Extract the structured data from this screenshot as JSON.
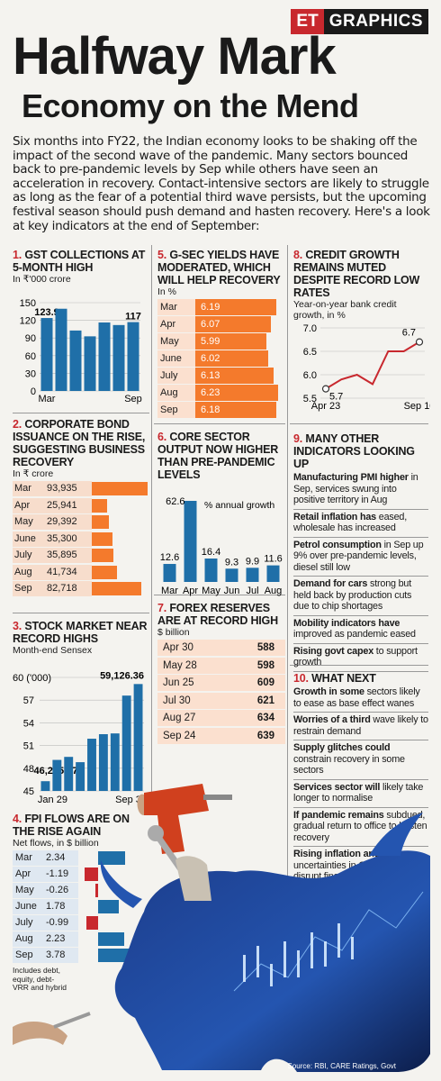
{
  "badge": {
    "et": "ET",
    "graphics": "GRAPHICS"
  },
  "title": "Halfway Mark",
  "subtitle": "Economy on the Mend",
  "intro": "Six months into FY22, the Indian economy looks to be shaking off the impact of the second wave of the pandemic. Many sectors bounced back to pre-pandemic levels by Sep while others have seen an acceleration in recovery. Contact-intensive sectors are likely to struggle as long as the fear of a potential third wave persists, but the upcoming festival season should push demand and hasten recovery. Here's a look at key indicators at the end of September:",
  "sections": {
    "gst": {
      "num": "1.",
      "title": "GST COLLECTIONS AT 5-MONTH HIGH",
      "unit": "In ₹'000 crore"
    },
    "bond": {
      "num": "2.",
      "title": "CORPORATE BOND ISSUANCE ON THE RISE, SUGGESTING BUSINESS RECOVERY",
      "unit": "In ₹ crore"
    },
    "stock": {
      "num": "3.",
      "title": "STOCK MARKET NEAR RECORD HIGHS",
      "unit": "Month-end Sensex"
    },
    "fpi": {
      "num": "4.",
      "title": "FPI FLOWS ARE ON THE RISE AGAIN",
      "unit": "Net flows, in $ billion",
      "note": "Includes debt, equity, debt-VRR and hybrid"
    },
    "gsec": {
      "num": "5.",
      "title": "G-SEC YIELDS HAVE MODERATED, WHICH WILL HELP RECOVERY",
      "unit": "In %"
    },
    "core": {
      "num": "6.",
      "title": "CORE SECTOR OUTPUT NOW HIGHER THAN PRE-PANDEMIC LEVELS",
      "unit": "% annual growth"
    },
    "forex": {
      "num": "7.",
      "title": "FOREX RESERVES ARE AT RECORD HIGH",
      "unit": "$ billion"
    },
    "credit": {
      "num": "8.",
      "title": "CREDIT GROWTH REMAINS MUTED DESPITE RECORD LOW RATES",
      "unit": "Year-on-year bank credit growth, in %"
    },
    "indicators": {
      "num": "9.",
      "title": "MANY OTHER INDICATORS LOOKING UP",
      "items": [
        {
          "bold": "Manufacturing PMI higher",
          "rest": " in Sep, services swung into positive territory in Aug"
        },
        {
          "bold": "Retail inflation has",
          "rest": " eased, wholesale has increased"
        },
        {
          "bold": "Petrol consumption",
          "rest": " in Sep up 9% over pre-pandemic levels, diesel still low"
        },
        {
          "bold": "Demand for cars",
          "rest": " strong but held back by production cuts due to chip shortages"
        },
        {
          "bold": "Mobility indicators have",
          "rest": " improved as pandemic eased"
        },
        {
          "bold": "Rising govt capex",
          "rest": " to support growth"
        }
      ]
    },
    "next": {
      "num": "10.",
      "title": "WHAT NEXT",
      "items": [
        {
          "bold": "Growth in some",
          "rest": " sectors likely to ease as base effect wanes"
        },
        {
          "bold": "Worries of a third",
          "rest": " wave likely to restrain demand"
        },
        {
          "bold": "Supply glitches could",
          "rest": " constrain recovery in some sectors"
        },
        {
          "bold": "Services sector will",
          "rest": " likely take longer to normalise"
        },
        {
          "bold": "If pandemic remains",
          "rest": " subdued, gradual return to office to hasten recovery"
        },
        {
          "bold": "Rising inflation and",
          "rest": " uncertainties in China can disrupt financial markets"
        }
      ]
    }
  },
  "source": "Source: RBI, CARE Ratings, Govt",
  "colors": {
    "blue": "#1f6fa8",
    "orange": "#f47a2c",
    "red": "#c8282e",
    "light_orange": "#fbe0cf"
  },
  "chart_data": [
    {
      "id": "gst",
      "type": "bar",
      "categories": [
        "Mar",
        "Apr",
        "May",
        "Jun",
        "Jul",
        "Aug",
        "Sep"
      ],
      "values": [
        123.9,
        139.7,
        102.7,
        92.8,
        116.4,
        112.0,
        117
      ],
      "data_labels": {
        "0": "123.9",
        "6": "117"
      },
      "x_tick_labels": [
        "Mar",
        "",
        "",
        "",
        "",
        "",
        "Sep"
      ],
      "yticks": [
        "0",
        "30",
        "60",
        "90",
        "120",
        "150"
      ],
      "ylim": [
        0,
        150
      ]
    },
    {
      "id": "gsec",
      "type": "bar",
      "categories": [
        "Mar",
        "Apr",
        "May",
        "June",
        "July",
        "Aug",
        "Sep"
      ],
      "values": [
        6.19,
        6.07,
        5.99,
        6.02,
        6.13,
        6.23,
        6.18
      ],
      "labels": [
        "6.19",
        "6.07",
        "5.99",
        "6.02",
        "6.13",
        "6.23",
        "6.18"
      ]
    },
    {
      "id": "credit",
      "type": "line",
      "x": [
        "Apr 23",
        "",
        "",
        "",
        "",
        "",
        "Sep 10"
      ],
      "values": [
        5.7,
        5.9,
        6.0,
        5.8,
        6.5,
        6.5,
        6.7
      ],
      "annotations": {
        "0": "5.7",
        "6": "6.7"
      },
      "yticks": [
        "5.5",
        "6.0",
        "6.5",
        "7.0"
      ],
      "ylim": [
        5.5,
        7.0
      ]
    },
    {
      "id": "bond",
      "type": "bar",
      "categories": [
        "Mar",
        "Apr",
        "May",
        "June",
        "July",
        "Aug",
        "Sep"
      ],
      "values": [
        93935,
        25941,
        29392,
        35300,
        35895,
        41734,
        82718
      ],
      "labels": [
        "93,935",
        "25,941",
        "29,392",
        "35,300",
        "35,895",
        "41,734",
        "82,718"
      ]
    },
    {
      "id": "core",
      "type": "bar",
      "categories": [
        "Mar",
        "Apr",
        "May",
        "Jun",
        "Jul",
        "Aug"
      ],
      "values": [
        12.6,
        62.6,
        16.4,
        9.3,
        9.9,
        11.6
      ],
      "labels": [
        "12.6",
        "62.6",
        "16.4",
        "9.3",
        "9.9",
        "11.6"
      ]
    },
    {
      "id": "stock",
      "type": "bar",
      "categories": [
        "Jan 29",
        "Feb",
        "Mar",
        "Apr",
        "May",
        "Jun",
        "Jul",
        "Aug",
        "Sep 30"
      ],
      "values": [
        46.28577,
        49.1,
        49.5,
        48.8,
        51.9,
        52.5,
        52.6,
        57.6,
        59.12636
      ],
      "data_labels": {
        "0": "46,285.77",
        "8": "59,126.36"
      },
      "x_tick_labels": [
        "Jan 29",
        "",
        "",
        "",
        "",
        "",
        "",
        "",
        "Sep 30"
      ],
      "yticks": [
        "45",
        "48",
        "51",
        "54",
        "57",
        "60 ('000)"
      ],
      "ylim": [
        45,
        60
      ]
    },
    {
      "id": "forex",
      "type": "table",
      "rows": [
        {
          "label": "Apr 30",
          "value": "588"
        },
        {
          "label": "May 28",
          "value": "598"
        },
        {
          "label": "Jun 25",
          "value": "609"
        },
        {
          "label": "Jul 30",
          "value": "621"
        },
        {
          "label": "Aug 27",
          "value": "634"
        },
        {
          "label": "Sep 24",
          "value": "639"
        }
      ]
    },
    {
      "id": "fpi",
      "type": "bar",
      "categories": [
        "Mar",
        "Apr",
        "May",
        "June",
        "July",
        "Aug",
        "Sep"
      ],
      "values": [
        2.34,
        -1.19,
        -0.26,
        1.78,
        -0.99,
        2.23,
        3.78
      ],
      "labels": [
        "2.34",
        "-1.19",
        "-0.26",
        "1.78",
        "-0.99",
        "2.23",
        "3.78"
      ]
    }
  ]
}
